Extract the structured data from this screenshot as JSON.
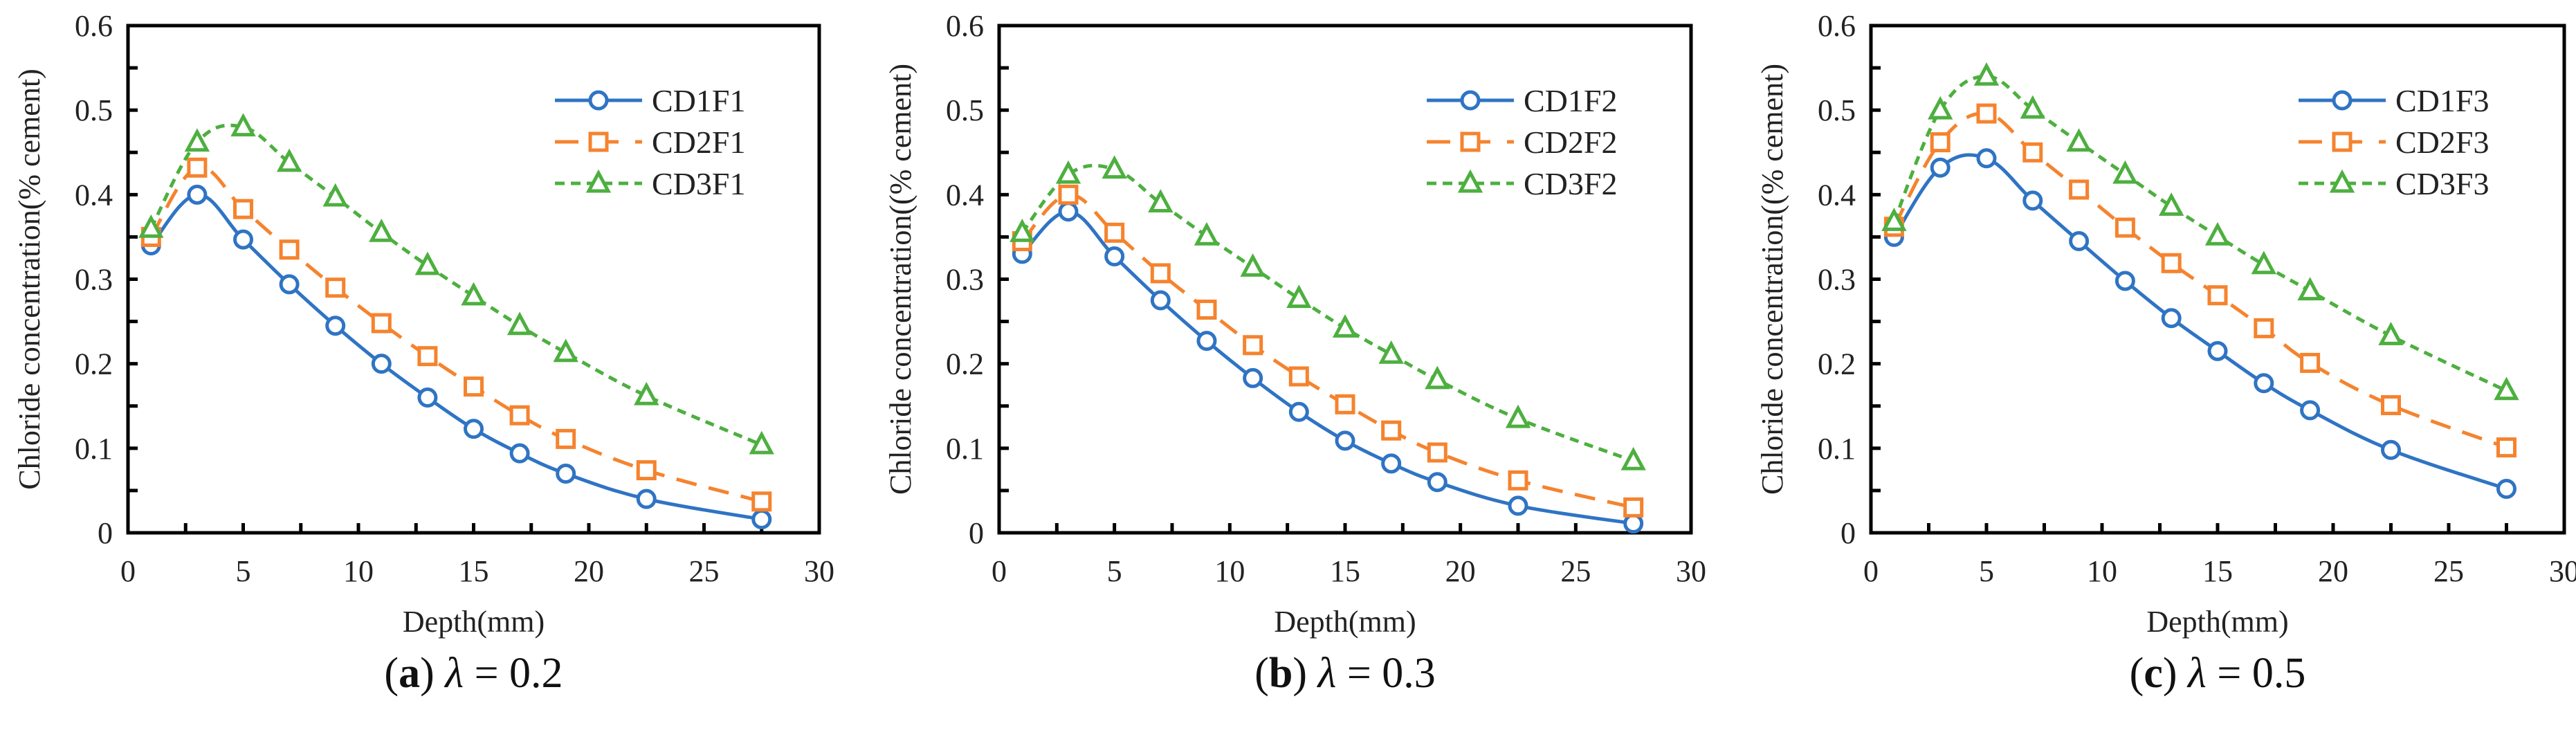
{
  "colors": {
    "s1": "#2F74C4",
    "s2": "#F5832E",
    "s3": "#4DAF3F",
    "axis": "#000000"
  },
  "chart_data": [
    {
      "type": "line",
      "caption": {
        "letter": "a",
        "symbol": "λ",
        "value": "= 0.2"
      },
      "xlabel": "Depth(mm)",
      "ylabel": "Chloride concentration(% cement)",
      "xlim": [
        0,
        30
      ],
      "ylim": [
        0,
        0.6
      ],
      "xticks": [
        "0",
        "5",
        "10",
        "15",
        "20",
        "25",
        "30"
      ],
      "yticks": [
        "0",
        "0.1",
        "0.2",
        "0.3",
        "0.4",
        "0.5",
        "0.6"
      ],
      "legend_position": "top-right",
      "x": [
        1,
        3,
        5,
        7,
        9,
        11,
        13,
        15,
        17,
        19,
        22.5,
        27.5
      ],
      "series": [
        {
          "name": "CD1F1",
          "marker": "circle",
          "values": [
            0.34,
            0.4,
            0.347,
            0.294,
            0.245,
            0.2,
            0.16,
            0.123,
            0.094,
            0.07,
            0.04,
            0.016
          ]
        },
        {
          "name": "CD2F1",
          "marker": "square",
          "values": [
            0.35,
            0.432,
            0.383,
            0.335,
            0.29,
            0.248,
            0.209,
            0.173,
            0.139,
            0.111,
            0.074,
            0.037
          ]
        },
        {
          "name": "CD3F1",
          "marker": "triangle",
          "values": [
            0.36,
            0.462,
            0.48,
            0.438,
            0.397,
            0.355,
            0.316,
            0.28,
            0.245,
            0.213,
            0.162,
            0.104
          ]
        }
      ]
    },
    {
      "type": "line",
      "caption": {
        "letter": "b",
        "symbol": "λ",
        "value": "= 0.3"
      },
      "xlabel": "Depth(mm)",
      "ylabel": "Chloride concentration((% cement)",
      "xlim": [
        0,
        30
      ],
      "ylim": [
        0,
        0.6
      ],
      "xticks": [
        "0",
        "5",
        "10",
        "15",
        "20",
        "25",
        "30"
      ],
      "yticks": [
        "0",
        "0.1",
        "0.2",
        "0.3",
        "0.4",
        "0.5",
        "0.6"
      ],
      "legend_position": "top-right",
      "x": [
        1,
        3,
        5,
        7,
        9,
        11,
        13,
        15,
        17,
        19,
        22.5,
        27.5
      ],
      "series": [
        {
          "name": "CD1F2",
          "marker": "circle",
          "values": [
            0.33,
            0.38,
            0.327,
            0.275,
            0.227,
            0.183,
            0.143,
            0.109,
            0.082,
            0.06,
            0.032,
            0.011
          ]
        },
        {
          "name": "CD2F2",
          "marker": "square",
          "values": [
            0.345,
            0.4,
            0.355,
            0.307,
            0.264,
            0.222,
            0.185,
            0.152,
            0.121,
            0.095,
            0.062,
            0.03
          ]
        },
        {
          "name": "CD3F2",
          "marker": "triangle",
          "values": [
            0.355,
            0.424,
            0.43,
            0.39,
            0.351,
            0.314,
            0.277,
            0.242,
            0.211,
            0.181,
            0.135,
            0.085
          ]
        }
      ]
    },
    {
      "type": "line",
      "caption": {
        "letter": "c",
        "symbol": "λ",
        "value": "= 0.5"
      },
      "xlabel": "Depth(mm)",
      "ylabel": "Chloride concentration((% cement)",
      "xlim": [
        0,
        30
      ],
      "ylim": [
        0,
        0.6
      ],
      "xticks": [
        "0",
        "5",
        "10",
        "15",
        "20",
        "25",
        "30"
      ],
      "yticks": [
        "0",
        "0.1",
        "0.2",
        "0.3",
        "0.4",
        "0.5",
        "0.6"
      ],
      "legend_position": "top-right",
      "x": [
        1,
        3,
        5,
        7,
        9,
        11,
        13,
        15,
        17,
        19,
        22.5,
        27.5
      ],
      "series": [
        {
          "name": "CD1F3",
          "marker": "circle",
          "values": [
            0.35,
            0.432,
            0.443,
            0.393,
            0.345,
            0.298,
            0.254,
            0.215,
            0.177,
            0.145,
            0.098,
            0.052
          ]
        },
        {
          "name": "CD2F3",
          "marker": "square",
          "values": [
            0.362,
            0.462,
            0.496,
            0.45,
            0.406,
            0.361,
            0.319,
            0.281,
            0.242,
            0.201,
            0.151,
            0.101
          ]
        },
        {
          "name": "CD3F3",
          "marker": "triangle",
          "values": [
            0.368,
            0.5,
            0.54,
            0.501,
            0.462,
            0.424,
            0.386,
            0.351,
            0.317,
            0.286,
            0.233,
            0.168
          ]
        }
      ]
    }
  ]
}
